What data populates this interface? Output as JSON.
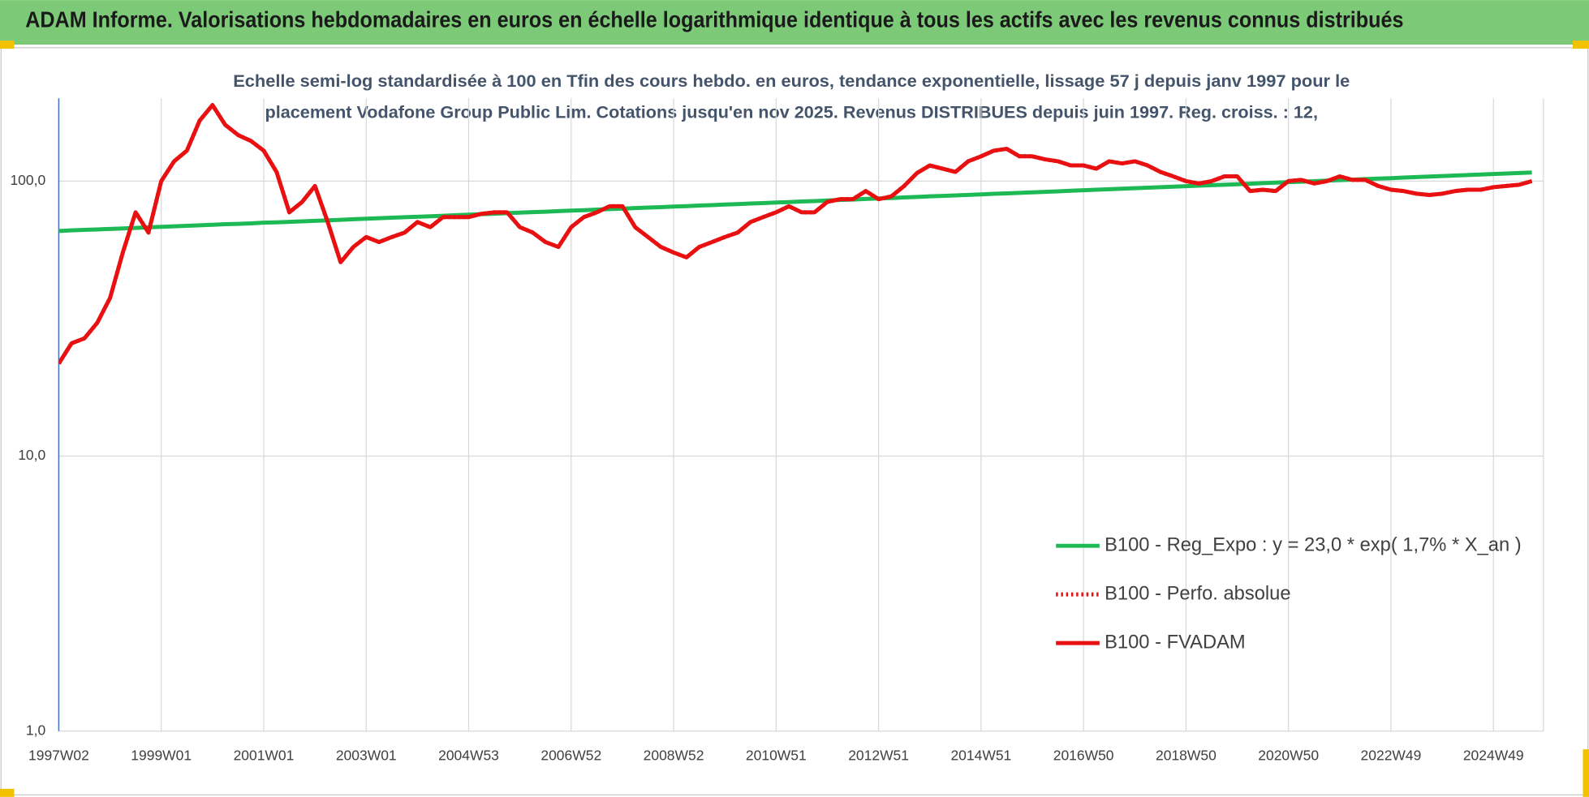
{
  "chart_data": {
    "type": "line",
    "title": "ADAM Informe. Valorisations hebdomadaires en euros en échelle logarithmique identique à tous les actifs avec les revenus connus distribués",
    "subtitle": [
      "Echelle semi-log standardisée à 100 en Tfin des cours hebdo. en euros, tendance exponentielle, lissage 57 j depuis janv 1997 pour le",
      "placement Vodafone Group Public Lim. Cotations jusqu'en nov 2025.  Revenus DISTRIBUES depuis juin 1997. Reg. croiss. : 12,"
    ],
    "categories": [
      "1997W02",
      null,
      null,
      null,
      null,
      null,
      null,
      null,
      "1999W01",
      null,
      null,
      null,
      null,
      null,
      null,
      null,
      "2001W01",
      null,
      null,
      null,
      null,
      null,
      null,
      null,
      "2003W01",
      null,
      null,
      null,
      null,
      null,
      null,
      null,
      "2004W53",
      null,
      null,
      null,
      null,
      null,
      null,
      null,
      "2006W52",
      null,
      null,
      null,
      null,
      null,
      null,
      null,
      "2008W52",
      null,
      null,
      null,
      null,
      null,
      null,
      null,
      "2010W51",
      null,
      null,
      null,
      null,
      null,
      null,
      null,
      "2012W51",
      null,
      null,
      null,
      null,
      null,
      null,
      null,
      "2014W51",
      null,
      null,
      null,
      null,
      null,
      null,
      null,
      "2016W50",
      null,
      null,
      null,
      null,
      null,
      null,
      null,
      "2018W50",
      null,
      null,
      null,
      null,
      null,
      null,
      null,
      "2020W50",
      null,
      null,
      null,
      null,
      null,
      null,
      null,
      "2022W49",
      null,
      null,
      null,
      null,
      null,
      null,
      null,
      "2024W49",
      null,
      null,
      null
    ],
    "ylog": true,
    "ylim": [
      1,
      200
    ],
    "yticks": [
      {
        "value": 1,
        "label": "1,0"
      },
      {
        "value": 10,
        "label": "10,0"
      },
      {
        "value": 100,
        "label": "100,0"
      }
    ],
    "grid": true,
    "legend": "lower right",
    "series": [
      {
        "name": "B100 - Reg_Expo : y = 23,0 * exp( 1,7% *  X_an )",
        "color": "#1db954",
        "dash": "solid",
        "values": [
          65.9,
          66.2,
          66.5,
          66.7,
          67.0,
          67.3,
          67.6,
          67.9,
          68.2,
          68.5,
          68.8,
          69.1,
          69.4,
          69.7,
          69.9,
          70.2,
          70.6,
          70.8,
          71.1,
          71.4,
          71.7,
          72.0,
          72.3,
          72.7,
          73.0,
          73.3,
          73.6,
          73.9,
          74.2,
          74.5,
          74.8,
          75.2,
          75.5,
          75.8,
          76.1,
          76.5,
          76.8,
          77.1,
          77.4,
          77.8,
          78.1,
          78.4,
          78.8,
          79.1,
          79.4,
          79.8,
          80.1,
          80.4,
          80.8,
          81.1,
          81.5,
          81.8,
          82.2,
          82.5,
          82.9,
          83.2,
          83.6,
          83.9,
          84.3,
          84.6,
          85.0,
          85.4,
          85.7,
          86.1,
          86.5,
          86.8,
          87.2,
          87.6,
          88.0,
          88.3,
          88.7,
          89.1,
          89.5,
          89.9,
          90.2,
          90.6,
          91.0,
          91.4,
          91.8,
          92.2,
          92.6,
          93.0,
          93.4,
          93.8,
          94.2,
          94.6,
          95.0,
          95.4,
          95.8,
          96.2,
          96.6,
          97.0,
          97.4,
          97.8,
          98.3,
          98.7,
          99.1,
          99.5,
          99.9,
          100.4,
          100.8,
          101.2,
          101.7,
          102.1,
          102.5,
          103.0,
          103.4,
          103.9,
          104.3,
          104.7,
          105.2,
          105.6,
          106.1,
          106.5,
          107.0,
          107.4
        ]
      },
      {
        "name": "B100 - Perfo. absolue",
        "color": "#e81010",
        "dash": "dotted",
        "values": [
          21.7,
          25.7,
          26.8,
          30.5,
          37.6,
          55,
          77,
          65,
          100,
          118,
          129,
          166,
          189,
          160,
          147,
          140,
          129,
          108,
          77,
          84,
          96,
          71,
          50.7,
          57.6,
          62.6,
          60,
          62.6,
          65,
          71,
          68,
          74,
          74,
          74,
          76,
          77,
          77,
          68,
          65,
          60,
          57.6,
          68,
          74,
          77,
          81,
          81,
          68,
          62.6,
          57.6,
          55,
          52.8,
          57.6,
          60,
          62.6,
          65,
          71,
          74,
          77,
          81,
          77,
          77,
          84,
          86,
          86,
          92,
          86,
          88,
          96,
          107,
          114,
          111,
          108,
          118,
          123,
          129,
          131,
          123,
          123,
          120,
          118,
          114,
          114,
          111,
          118,
          116,
          118,
          114,
          108,
          104,
          100,
          98,
          100,
          104,
          104,
          92,
          93,
          92,
          100,
          101,
          98,
          100,
          104,
          101,
          101,
          96,
          93,
          92,
          90,
          89,
          90,
          92,
          93,
          93,
          95,
          96,
          97,
          100
        ]
      },
      {
        "name": "B100 - FVADAM",
        "color": "#e81010",
        "dash": "solid",
        "values": [
          21.7,
          25.7,
          26.8,
          30.5,
          37.6,
          55,
          77,
          65,
          100,
          118,
          129,
          166,
          189,
          160,
          147,
          140,
          129,
          108,
          77,
          84,
          96,
          71,
          50.7,
          57.6,
          62.6,
          60,
          62.6,
          65,
          71,
          68,
          74,
          74,
          74,
          76,
          77,
          77,
          68,
          65,
          60,
          57.6,
          68,
          74,
          77,
          81,
          81,
          68,
          62.6,
          57.6,
          55,
          52.8,
          57.6,
          60,
          62.6,
          65,
          71,
          74,
          77,
          81,
          77,
          77,
          84,
          86,
          86,
          92,
          86,
          88,
          96,
          107,
          114,
          111,
          108,
          118,
          123,
          129,
          131,
          123,
          123,
          120,
          118,
          114,
          114,
          111,
          118,
          116,
          118,
          114,
          108,
          104,
          100,
          98,
          100,
          104,
          104,
          92,
          93,
          92,
          100,
          101,
          98,
          100,
          104,
          101,
          101,
          96,
          93,
          92,
          90,
          89,
          90,
          92,
          93,
          93,
          95,
          96,
          97,
          100
        ]
      }
    ]
  }
}
